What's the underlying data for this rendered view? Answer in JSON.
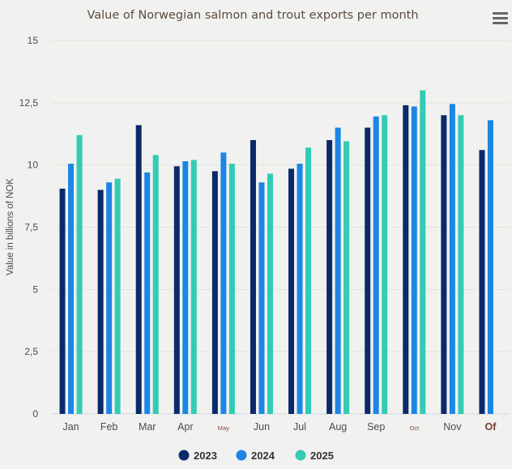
{
  "chart_data": {
    "type": "bar",
    "title": "Value of Norwegian salmon and trout exports per month",
    "ylabel": "Value in billions of NOK",
    "xlabel": "",
    "ylim": [
      0,
      15
    ],
    "yticks": [
      0,
      2.5,
      5,
      7.5,
      10,
      12.5,
      15
    ],
    "ytick_labels": [
      "0",
      "2,5",
      "5",
      "7,5",
      "10",
      "12,5",
      "15"
    ],
    "categories": [
      "Jan",
      "Feb",
      "Mar",
      "Apr",
      "May",
      "Jun",
      "Jul",
      "Aug",
      "Sep",
      "Oct",
      "Nov",
      "Of"
    ],
    "grid": true,
    "legend": "bottom-center",
    "series": [
      {
        "name": "2023",
        "color": "#0b2a6b",
        "values": [
          9.05,
          9.0,
          11.6,
          9.95,
          9.75,
          11.0,
          9.85,
          11.0,
          11.5,
          12.4,
          12.0,
          10.6
        ]
      },
      {
        "name": "2024",
        "color": "#1c86e6",
        "values": [
          10.05,
          9.3,
          9.7,
          10.15,
          10.5,
          9.3,
          10.05,
          11.5,
          11.95,
          12.35,
          12.45,
          11.8
        ]
      },
      {
        "name": "2025",
        "color": "#33cbb4",
        "values": [
          11.2,
          9.45,
          10.4,
          10.2,
          10.05,
          9.65,
          10.7,
          10.95,
          12.0,
          13.0,
          12.0,
          null
        ]
      }
    ]
  },
  "ui": {
    "menu_icon": "hamburger-menu-icon"
  }
}
